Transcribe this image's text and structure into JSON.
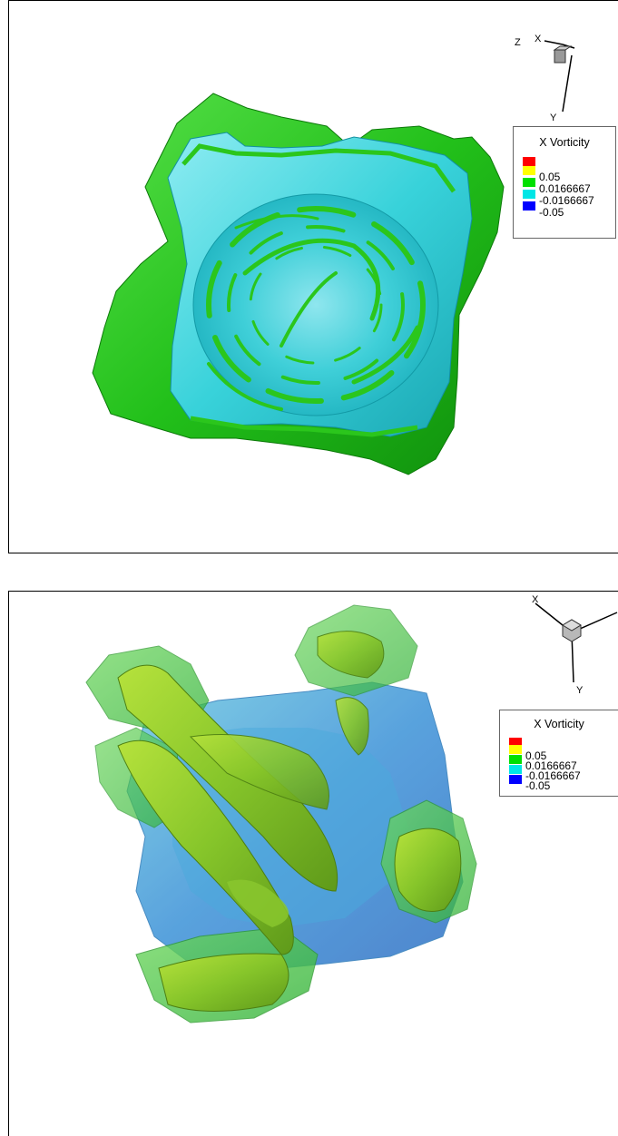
{
  "panels": [
    {
      "legend": {
        "title": "X Vorticity",
        "levels": [
          "0.05",
          "0.0166667",
          "-0.0166667",
          "-0.05"
        ],
        "colors": [
          "#ff0000",
          "#ffff00",
          "#00e000",
          "#00e6e6",
          "#0000ff"
        ]
      },
      "axes": {
        "x": "X",
        "y": "Y",
        "z": "Z"
      }
    },
    {
      "legend": {
        "title": "X Vorticity",
        "levels": [
          "0.05",
          "0.0166667",
          "-0.0166667",
          "-0.05"
        ],
        "colors": [
          "#ff0000",
          "#ffff00",
          "#00e000",
          "#00e6e6",
          "#0000ff"
        ]
      },
      "axes": {
        "x": "X",
        "y": "Y"
      }
    }
  ]
}
